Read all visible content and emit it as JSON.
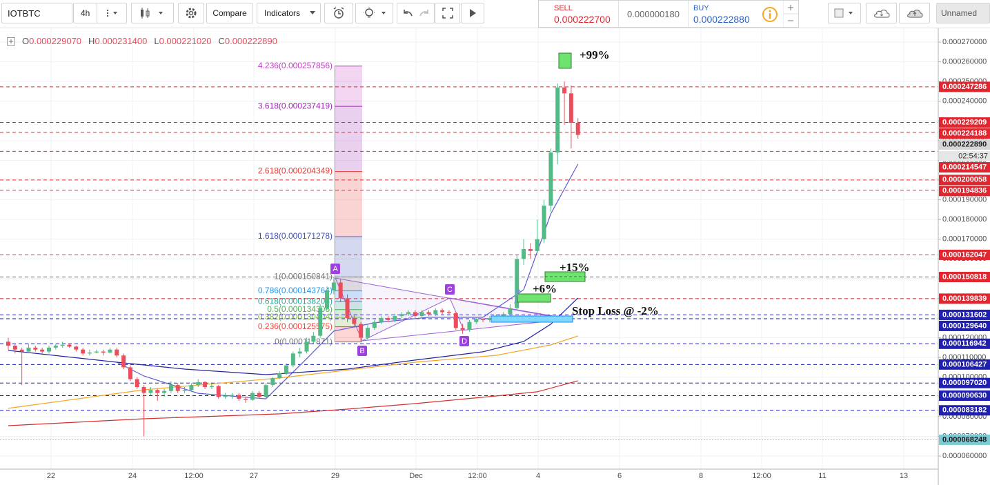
{
  "toolbar": {
    "symbol": "IOTBTC",
    "interval": "4h",
    "compare": "Compare",
    "indicators": "Indicators",
    "sell_label": "SELL",
    "sell_price": "0.000222700",
    "spread": "0.000000180",
    "buy_label": "BUY",
    "buy_price": "0.000222880",
    "layout_name": "Unnamed"
  },
  "chart_data": {
    "type": "candlestick",
    "legend_ohlc": [
      {
        "key": "O",
        "value": "0.000229070"
      },
      {
        "key": "H",
        "value": "0.000231400"
      },
      {
        "key": "L",
        "value": "0.000221020"
      },
      {
        "key": "C",
        "value": "0.000222890"
      }
    ],
    "ylim": [
      5.335e-05,
      0.000277
    ],
    "yticks": [
      {
        "value": 6e-05,
        "label": "0.000060000"
      },
      {
        "value": 7e-05,
        "label": "0.000070000"
      },
      {
        "value": 8e-05,
        "label": "0.000080000"
      },
      {
        "value": 9e-05,
        "label": "0.000090000"
      },
      {
        "value": 0.0001,
        "label": "0.000100000"
      },
      {
        "value": 0.00011,
        "label": "0.000110000"
      },
      {
        "value": 0.00012,
        "label": "0.000120000"
      },
      {
        "value": 0.00013,
        "label": "0.000130000"
      },
      {
        "value": 0.00014,
        "label": "0.000140000"
      },
      {
        "value": 0.00015,
        "label": "0.000150000"
      },
      {
        "value": 0.00016,
        "label": "0.000160000"
      },
      {
        "value": 0.00017,
        "label": "0.000170000"
      },
      {
        "value": 0.00018,
        "label": "0.000180000"
      },
      {
        "value": 0.00019,
        "label": "0.000190000"
      },
      {
        "value": 0.0002,
        "label": "0.000200000"
      },
      {
        "value": 0.00021,
        "label": "0.000210000"
      },
      {
        "value": 0.00022,
        "label": "0.000220000"
      },
      {
        "value": 0.00023,
        "label": "0.000230000"
      },
      {
        "value": 0.00024,
        "label": "0.000240000"
      },
      {
        "value": 0.00025,
        "label": "0.000250000"
      },
      {
        "value": 0.00026,
        "label": "0.000260000"
      },
      {
        "value": 0.00027,
        "label": "0.000270000"
      }
    ],
    "x_labels": [
      "22",
      "24",
      "12:00",
      "27",
      "29",
      "Dec",
      "12:00",
      "4",
      "6",
      "8",
      "12:00",
      "11",
      "13"
    ],
    "up_color": "#53b987",
    "down_color": "#eb4d5c",
    "candles": [
      [
        0.000118,
        0.00012,
        0.000114,
        0.000116
      ],
      [
        0.000116,
        0.000117,
        0.000112,
        0.000114
      ],
      [
        0.000114,
        0.000115,
        9.6e-05,
        0.000113
      ],
      [
        0.000113,
        0.000117,
        0.000112,
        0.000115
      ],
      [
        0.000115,
        0.000116,
        0.000113,
        0.000114
      ],
      [
        0.000114,
        0.000115,
        0.000112,
        0.000113
      ],
      [
        0.000113,
        0.000116,
        0.000112,
        0.000115
      ],
      [
        0.000115,
        0.000117,
        0.000114,
        0.000116
      ],
      [
        0.000116,
        0.000118,
        0.000115,
        0.0001165
      ],
      [
        0.0001165,
        0.000117,
        0.000115,
        0.0001155
      ],
      [
        0.0001155,
        0.000116,
        0.000113,
        0.000114
      ],
      [
        0.000114,
        0.000115,
        0.000111,
        0.000112
      ],
      [
        0.000112,
        0.000114,
        0.000111,
        0.0001125
      ],
      [
        0.0001125,
        0.000114,
        0.000112,
        0.000113
      ],
      [
        0.000113,
        0.000114,
        0.000111,
        0.0001125
      ],
      [
        0.0001125,
        0.000115,
        0.000112,
        0.000114
      ],
      [
        0.000114,
        0.000115,
        0.00011,
        0.000111
      ],
      [
        0.000111,
        0.000112,
        0.000104,
        0.000105
      ],
      [
        0.000105,
        0.000106,
        9.8e-05,
        9.9e-05
      ],
      [
        9.9e-05,
        0.0001,
        9.4e-05,
        9.5e-05
      ],
      [
        9.5e-05,
        9.6e-05,
        7e-05,
        9.2e-05
      ],
      [
        9.2e-05,
        9.5e-05,
        9.1e-05,
        9.35e-05
      ],
      [
        9.35e-05,
        9.4e-05,
        8.8e-05,
        9.2e-05
      ],
      [
        9.2e-05,
        9.4e-05,
        9e-05,
        9.3e-05
      ],
      [
        9.3e-05,
        9.8e-05,
        9.2e-05,
        9.6e-05
      ],
      [
        9.6e-05,
        9.7e-05,
        9.2e-05,
        9.3e-05
      ],
      [
        9.3e-05,
        9.5e-05,
        9.2e-05,
        9.35e-05
      ],
      [
        9.35e-05,
        9.7e-05,
        9.3e-05,
        9.6e-05
      ],
      [
        9.6e-05,
        9.9e-05,
        9.5e-05,
        9.75e-05
      ],
      [
        9.75e-05,
        9.8e-05,
        9.4e-05,
        9.5e-05
      ],
      [
        9.5e-05,
        9.7e-05,
        9.4e-05,
        9.55e-05
      ],
      [
        9.55e-05,
        9.6e-05,
        8.9e-05,
        9e-05
      ],
      [
        9e-05,
        9.2e-05,
        8.9e-05,
        9.05e-05
      ],
      [
        9.05e-05,
        9.2e-05,
        8.9e-05,
        9.1e-05
      ],
      [
        9.1e-05,
        9.2e-05,
        8.8e-05,
        8.9e-05
      ],
      [
        8.9e-05,
        9e-05,
        8.7e-05,
        8.85e-05
      ],
      [
        8.85e-05,
        9.3e-05,
        8.8e-05,
        9.2e-05
      ],
      [
        9.2e-05,
        9.3e-05,
        8.9e-05,
        9e-05
      ],
      [
        9e-05,
        9.7e-05,
        8.9e-05,
        9.6e-05
      ],
      [
        9.6e-05,
        0.0001,
        9.5e-05,
        9.95e-05
      ],
      [
        9.95e-05,
        0.000103,
        9.9e-05,
        0.000102
      ],
      [
        0.000102,
        0.000107,
        0.000101,
        0.000106
      ],
      [
        0.000106,
        0.000113,
        0.000105,
        0.000112
      ],
      [
        0.000112,
        0.000115,
        0.00011,
        0.000113
      ],
      [
        0.000113,
        0.00012,
        0.000112,
        0.000118
      ],
      [
        0.000118,
        0.000123,
        0.000117,
        0.000121
      ],
      [
        0.000121,
        0.000137,
        0.00012,
        0.000135
      ],
      [
        0.000135,
        0.000146,
        0.000134,
        0.000144
      ],
      [
        0.000144,
        0.000151,
        0.000142,
        0.000148
      ],
      [
        0.000148,
        0.00015,
        0.000138,
        0.00014
      ],
      [
        0.00014,
        0.000142,
        0.000128,
        0.00013
      ],
      [
        0.00013,
        0.000132,
        0.000125,
        0.000127
      ],
      [
        0.000127,
        0.000128,
        0.000118,
        0.00012
      ],
      [
        0.00012,
        0.000127,
        0.000119,
        0.000125
      ],
      [
        0.000125,
        0.000129,
        0.000124,
        0.000128
      ],
      [
        0.000128,
        0.000131,
        0.000127,
        0.00013
      ],
      [
        0.00013,
        0.000131,
        0.000128,
        0.000129
      ],
      [
        0.000129,
        0.000132,
        0.000128,
        0.000131
      ],
      [
        0.000131,
        0.000133,
        0.00013,
        0.000132
      ],
      [
        0.000132,
        0.000134,
        0.000131,
        0.000133
      ],
      [
        0.000133,
        0.000134,
        0.00013,
        0.000131
      ],
      [
        0.000131,
        0.000134,
        0.00013,
        0.000133
      ],
      [
        0.000133,
        0.000134,
        0.000131,
        0.000132
      ],
      [
        0.000132,
        0.000135,
        0.000131,
        0.000134
      ],
      [
        0.000134,
        0.000135,
        0.000132,
        0.000133
      ],
      [
        0.000133,
        0.000134,
        0.000132,
        0.0001325
      ],
      [
        0.0001325,
        0.000133,
        0.000124,
        0.000125
      ],
      [
        0.000125,
        0.000127,
        0.000122,
        0.000124
      ],
      [
        0.000124,
        0.000129,
        0.000123,
        0.000128
      ],
      [
        0.000128,
        0.00013,
        0.000127,
        0.0001295
      ],
      [
        0.0001295,
        0.00013,
        0.000128,
        0.000129
      ],
      [
        0.000129,
        0.000131,
        0.000128,
        0.00013
      ],
      [
        0.00013,
        0.000132,
        0.000129,
        0.000131
      ],
      [
        0.000131,
        0.000133,
        0.00013,
        0.000132
      ],
      [
        0.000132,
        0.000137,
        0.000131,
        0.000135
      ],
      [
        0.000135,
        0.000162,
        0.000134,
        0.00016
      ],
      [
        0.00016,
        0.00017,
        0.000157,
        0.000165
      ],
      [
        0.000165,
        0.000168,
        0.00016,
        0.000164
      ],
      [
        0.000164,
        0.00018,
        0.000163,
        0.00017
      ],
      [
        0.00017,
        0.00019,
        0.000168,
        0.000187
      ],
      [
        0.000187,
        0.000216,
        0.000184,
        0.000214
      ],
      [
        0.000214,
        0.000249,
        0.000208,
        0.000247
      ],
      [
        0.000247,
        0.00025,
        0.000228,
        0.000244
      ],
      [
        0.000244,
        0.000248,
        0.000216,
        0.00022907
      ],
      [
        0.00022907,
        0.0002314,
        0.00022102,
        0.00022289
      ]
    ],
    "indicators": [
      {
        "color": "#5b5bd6",
        "x": [
          16,
          20,
          28,
          38,
          44,
          48,
          54,
          62,
          70,
          76,
          80,
          84
        ],
        "values": [
          0.0001076,
          0.0001006,
          9.18e-05,
          8.9e-05,
          0.0001094,
          0.0001234,
          0.0001276,
          0.0001304,
          0.0001304,
          0.0001444,
          0.0001829,
          0.0002081
        ]
      },
      {
        "color": "#23239a",
        "x": [
          0,
          16,
          26,
          38,
          50,
          60,
          70,
          76,
          80,
          84
        ],
        "values": [
          0.0001136,
          0.0001076,
          0.0001041,
          0.0001013,
          0.0001041,
          0.0001087,
          0.0001129,
          0.0001181,
          0.0001269,
          0.0001402
        ]
      },
      {
        "color": "#f5a623",
        "x": [
          0,
          20,
          40,
          60,
          72,
          80,
          84
        ],
        "values": [
          8.42e-05,
          9.36e-05,
          9.96e-05,
          0.0001076,
          0.0001111,
          0.0001164,
          0.0001209
        ]
      },
      {
        "color": "#d32f2f",
        "x": [
          0,
          20,
          40,
          50,
          60,
          72,
          78,
          84
        ],
        "values": [
          7.54e-05,
          7.89e-05,
          8.14e-05,
          8.38e-05,
          8.66e-05,
          9.05e-05,
          9.26e-05,
          9.82e-05
        ]
      }
    ],
    "price_lines": [
      {
        "value": 0.000247286,
        "label": "0.000247286",
        "color": "#e0262e",
        "style": "dashed"
      },
      {
        "value": 0.000229209,
        "label": "0.000229209",
        "color": "#e0262e",
        "style": "dashed"
      },
      {
        "value": 0.000224188,
        "label": "0.000224188",
        "color": "#e0262e",
        "style": "dashed"
      },
      {
        "value": 0.000214547,
        "label": "0.000214547",
        "color": "#e0262e",
        "style": "dashed"
      },
      {
        "value": 0.000200058,
        "label": "0.000200058",
        "color": "#e0262e",
        "style": "dashed"
      },
      {
        "value": 0.000194836,
        "label": "0.000194836",
        "color": "#e0262e",
        "style": "dashed"
      },
      {
        "value": 0.000162047,
        "label": "0.000162047",
        "color": "#e0262e",
        "style": "dashed"
      },
      {
        "value": 0.000150818,
        "label": "0.000150818",
        "color": "#e0262e",
        "style": "dashed"
      },
      {
        "value": 0.000139839,
        "label": "0.000139839",
        "color": "#e0262e",
        "style": "dashed"
      },
      {
        "value": 0.000131602,
        "label": "0.000131602",
        "color": "#1f1fb0",
        "style": "dashed"
      },
      {
        "value": 0.00012964,
        "label": "0.000129640",
        "color": "#1f1fb0",
        "style": "dashed"
      },
      {
        "value": 0.000116942,
        "label": "0.000116942",
        "color": "#1f1fb0",
        "style": "dashed"
      },
      {
        "value": 0.000106427,
        "label": "0.000106427",
        "color": "#1f1fb0",
        "style": "dashed"
      },
      {
        "value": 9.702e-05,
        "label": "0.000097020",
        "color": "#1f1fb0",
        "style": "dashed"
      },
      {
        "value": 9.063e-05,
        "label": "0.000090630",
        "color": "#1f1fb0",
        "style": "dashed"
      },
      {
        "value": 8.3182e-05,
        "label": "0.000083182",
        "color": "#1f1fb0",
        "style": "dashed"
      },
      {
        "value": 6.8248e-05,
        "label": "0.000068248",
        "color": "#7ccbd4",
        "style": "dotted"
      }
    ],
    "current_price": {
      "value": 0.00022289,
      "label": "0.000222890"
    },
    "countdown": "02:54:37",
    "fibonacci": [
      {
        "value": 0.000257856,
        "label": "4.236(0.000257856)",
        "color": "#c03ec0"
      },
      {
        "value": 0.000237419,
        "label": "3.618(0.000237419)",
        "color": "#9c27b0"
      },
      {
        "value": 0.000204349,
        "label": "2.618(0.000204349)",
        "color": "#e53935"
      },
      {
        "value": 0.000171278,
        "label": "1.618(0.000171278)",
        "color": "#3f51b5"
      },
      {
        "value": 0.000150841,
        "label": "1(0.000150841)",
        "color": "#787878"
      },
      {
        "value": 0.000143764,
        "label": "0.786(0.000143764)",
        "color": "#2196f3"
      },
      {
        "value": 0.000138208,
        "label": "0.618(0.000138208)",
        "color": "#26a69a"
      },
      {
        "value": 0.000134306,
        "label": "0.5(0.000134306)",
        "color": "#4caf50"
      },
      {
        "value": 0.000130404,
        "label": "0.382(0.000130404)",
        "color": "#7cb342"
      },
      {
        "value": 0.000125575,
        "label": "0.236(0.000125575)",
        "color": "#f44336"
      },
      {
        "value": 0.000117871,
        "label": "0(0.000117871)",
        "color": "#787878"
      }
    ],
    "pattern_points": [
      "A",
      "B",
      "C",
      "D"
    ],
    "annotations": [
      "+99%",
      "+15%",
      "+6%",
      "Stop Loss @ -2%"
    ]
  }
}
